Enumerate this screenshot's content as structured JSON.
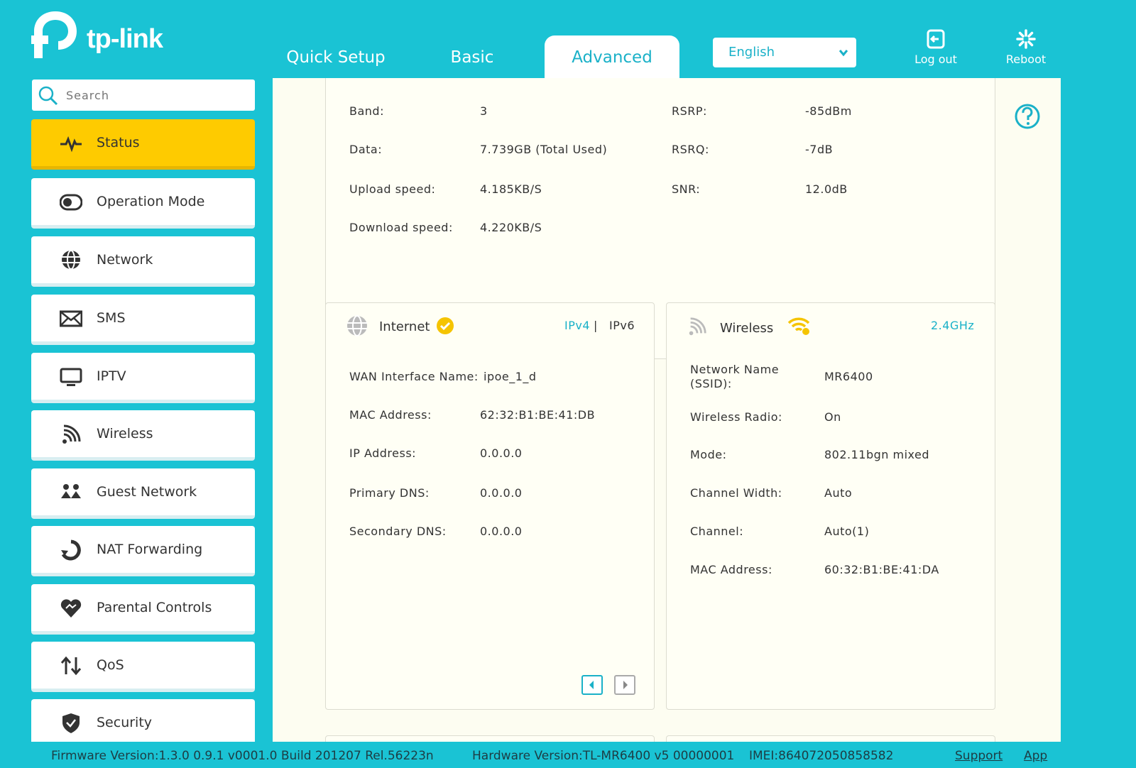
{
  "brand": {
    "logo_text": "tp-link"
  },
  "nav": {
    "tabs": [
      {
        "label": "Quick Setup"
      },
      {
        "label": "Basic"
      },
      {
        "label": "Advanced",
        "active": true
      }
    ],
    "language": "English",
    "logout_label": "Log out",
    "reboot_label": "Reboot"
  },
  "sidebar": {
    "search_placeholder": "Search",
    "items": [
      {
        "label": "Status",
        "icon": "pulse-icon",
        "active": true
      },
      {
        "label": "Operation Mode",
        "icon": "toggle-icon"
      },
      {
        "label": "Network",
        "icon": "globe-icon"
      },
      {
        "label": "SMS",
        "icon": "envelope-icon"
      },
      {
        "label": "IPTV",
        "icon": "monitor-icon"
      },
      {
        "label": "Wireless",
        "icon": "wifi-signal-icon"
      },
      {
        "label": "Guest Network",
        "icon": "guests-icon"
      },
      {
        "label": "NAT Forwarding",
        "icon": "refresh-icon"
      },
      {
        "label": "Parental Controls",
        "icon": "heart-icon"
      },
      {
        "label": "QoS",
        "icon": "up-down-arrows-icon"
      },
      {
        "label": "Security",
        "icon": "shield-icon"
      }
    ]
  },
  "lte": {
    "left": [
      {
        "label": "Band:",
        "value": "3"
      },
      {
        "label": "Data:",
        "value": "7.739GB (Total Used)"
      },
      {
        "label": "Upload speed:",
        "value": "4.185KB/S"
      },
      {
        "label": "Download speed:",
        "value": "4.220KB/S"
      }
    ],
    "right": [
      {
        "label": "RSRP:",
        "value": "-85dBm"
      },
      {
        "label": "RSRQ:",
        "value": "-7dB"
      },
      {
        "label": "SNR:",
        "value": "12.0dB"
      }
    ]
  },
  "internet": {
    "title": "Internet",
    "ipv4": "IPv4",
    "sep": "|",
    "ipv6": "IPv6",
    "rows": [
      {
        "label": "WAN Interface Name:",
        "value": "ipoe_1_d"
      },
      {
        "label": "MAC Address:",
        "value": "62:32:B1:BE:41:DB"
      },
      {
        "label": "IP Address:",
        "value": "0.0.0.0"
      },
      {
        "label": "Primary DNS:",
        "value": "0.0.0.0"
      },
      {
        "label": "Secondary DNS:",
        "value": "0.0.0.0"
      }
    ]
  },
  "wireless": {
    "title": "Wireless",
    "band": "2.4GHz",
    "rows": [
      {
        "label": "Network Name (SSID):",
        "value": "MR6400"
      },
      {
        "label": "Wireless Radio:",
        "value": "On"
      },
      {
        "label": "Mode:",
        "value": "802.11bgn mixed"
      },
      {
        "label": "Channel Width:",
        "value": "Auto"
      },
      {
        "label": "Channel:",
        "value": "Auto(1)"
      },
      {
        "label": "MAC Address:",
        "value": "60:32:B1:BE:41:DA"
      }
    ]
  },
  "footer": {
    "firmware": "Firmware Version:1.3.0 0.9.1 v0001.0 Build 201207 Rel.56223n",
    "hardware": "Hardware Version:TL-MR6400 v5 00000001",
    "imei": "IMEI:864072050858582",
    "support": "Support",
    "app": "App"
  },
  "colors": {
    "accent": "#1ac3d4",
    "active": "#fecb00",
    "link": "#1ab1c8"
  }
}
